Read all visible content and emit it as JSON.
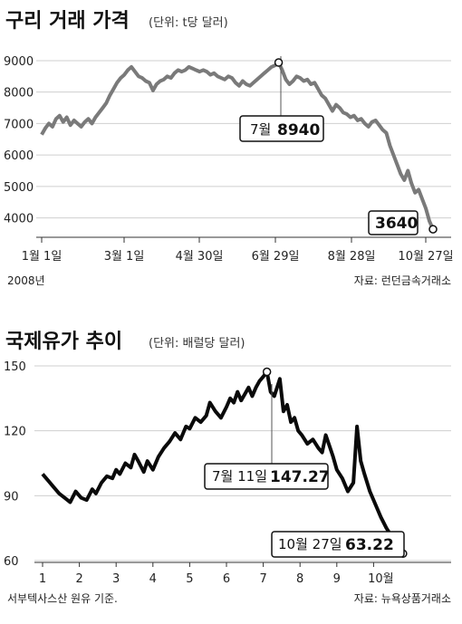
{
  "colors": {
    "line1": "#7a7a7a",
    "line2": "#0a0a0a",
    "grid": "#cfcfcf",
    "axis": "#333333"
  },
  "chart_data": [
    {
      "type": "line",
      "title": "구리 거래 가격",
      "unit": "(단위: t당 달러)",
      "x_tick_labels": [
        "1월 1일",
        "3월 1일",
        "4월 30일",
        "6월 29일",
        "8월 28일",
        "10월 27일"
      ],
      "y_ticks": [
        4000,
        5000,
        6000,
        7000,
        8000,
        9000
      ],
      "ylim": [
        3500,
        9200
      ],
      "grid": true,
      "year_label": "2008년",
      "source": "자료: 런던금속거래소",
      "annotations": [
        {
          "label": "7월",
          "value_text": "8940"
        },
        {
          "label": "",
          "value_text": "3640"
        }
      ],
      "series": [
        {
          "values": [
            6650,
            6850,
            7000,
            6900,
            7150,
            7250,
            7050,
            7200,
            6950,
            7100,
            7000,
            6900,
            7050,
            7150,
            7000,
            7200,
            7350,
            7500,
            7650,
            7900,
            8100,
            8300,
            8450,
            8550,
            8700,
            8800,
            8650,
            8500,
            8450,
            8350,
            8300,
            8050,
            8250,
            8350,
            8400,
            8500,
            8450,
            8600,
            8700,
            8650,
            8700,
            8800,
            8750,
            8700,
            8650,
            8700,
            8650,
            8550,
            8600,
            8500,
            8450,
            8400,
            8500,
            8450,
            8300,
            8200,
            8350,
            8250,
            8200,
            8300,
            8400,
            8500,
            8600,
            8700,
            8800,
            8850,
            8940,
            8700,
            8400,
            8250,
            8350,
            8500,
            8450,
            8350,
            8400,
            8250,
            8300,
            8100,
            7900,
            7800,
            7600,
            7400,
            7600,
            7500,
            7350,
            7300,
            7200,
            7250,
            7100,
            7150,
            7000,
            6900,
            7050,
            7100,
            6950,
            6800,
            6700,
            6300,
            6000,
            5700,
            5400,
            5200,
            5500,
            5100,
            4800,
            4900,
            4600,
            4300,
            3900,
            3640
          ]
        }
      ]
    },
    {
      "type": "line",
      "title": "국제유가 추이",
      "unit": "(단위: 배럴당 달러)",
      "x_tick_labels": [
        "1",
        "2",
        "3",
        "4",
        "5",
        "6",
        "7",
        "8",
        "9",
        "10월"
      ],
      "y_ticks": [
        60,
        90,
        120,
        150
      ],
      "ylim": [
        60,
        150
      ],
      "grid": true,
      "footnote": "서부텍사스산 원유 기준.",
      "source": "자료: 뉴욕상품거래소",
      "annotations": [
        {
          "label": "7월 11일",
          "value_text": "147.27"
        },
        {
          "label": "10월 27일",
          "value_text": "63.22"
        }
      ],
      "series": [
        {
          "values": [
            {
              "x": 1.0,
              "y": 100
            },
            {
              "x": 1.15,
              "y": 97
            },
            {
              "x": 1.3,
              "y": 94
            },
            {
              "x": 1.45,
              "y": 91
            },
            {
              "x": 1.6,
              "y": 89
            },
            {
              "x": 1.75,
              "y": 87
            },
            {
              "x": 1.9,
              "y": 92
            },
            {
              "x": 2.05,
              "y": 89
            },
            {
              "x": 2.2,
              "y": 88
            },
            {
              "x": 2.35,
              "y": 93
            },
            {
              "x": 2.45,
              "y": 91
            },
            {
              "x": 2.6,
              "y": 96
            },
            {
              "x": 2.75,
              "y": 99
            },
            {
              "x": 2.9,
              "y": 98
            },
            {
              "x": 3.0,
              "y": 102
            },
            {
              "x": 3.1,
              "y": 100
            },
            {
              "x": 3.25,
              "y": 105
            },
            {
              "x": 3.4,
              "y": 103
            },
            {
              "x": 3.5,
              "y": 109
            },
            {
              "x": 3.6,
              "y": 106
            },
            {
              "x": 3.75,
              "y": 101
            },
            {
              "x": 3.85,
              "y": 106
            },
            {
              "x": 4.0,
              "y": 102
            },
            {
              "x": 4.15,
              "y": 108
            },
            {
              "x": 4.3,
              "y": 112
            },
            {
              "x": 4.45,
              "y": 115
            },
            {
              "x": 4.6,
              "y": 119
            },
            {
              "x": 4.75,
              "y": 116
            },
            {
              "x": 4.9,
              "y": 122
            },
            {
              "x": 5.0,
              "y": 121
            },
            {
              "x": 5.15,
              "y": 126
            },
            {
              "x": 5.3,
              "y": 124
            },
            {
              "x": 5.45,
              "y": 127
            },
            {
              "x": 5.55,
              "y": 133
            },
            {
              "x": 5.7,
              "y": 129
            },
            {
              "x": 5.85,
              "y": 126
            },
            {
              "x": 6.0,
              "y": 131
            },
            {
              "x": 6.1,
              "y": 135
            },
            {
              "x": 6.2,
              "y": 133
            },
            {
              "x": 6.3,
              "y": 138
            },
            {
              "x": 6.4,
              "y": 134
            },
            {
              "x": 6.5,
              "y": 137
            },
            {
              "x": 6.6,
              "y": 140
            },
            {
              "x": 6.7,
              "y": 136
            },
            {
              "x": 6.8,
              "y": 140
            },
            {
              "x": 6.9,
              "y": 143
            },
            {
              "x": 7.0,
              "y": 145
            },
            {
              "x": 7.1,
              "y": 147.27
            },
            {
              "x": 7.2,
              "y": 138
            },
            {
              "x": 7.3,
              "y": 136
            },
            {
              "x": 7.45,
              "y": 144
            },
            {
              "x": 7.55,
              "y": 129
            },
            {
              "x": 7.65,
              "y": 132
            },
            {
              "x": 7.75,
              "y": 124
            },
            {
              "x": 7.85,
              "y": 126
            },
            {
              "x": 7.95,
              "y": 120
            },
            {
              "x": 8.05,
              "y": 118
            },
            {
              "x": 8.2,
              "y": 114
            },
            {
              "x": 8.35,
              "y": 116
            },
            {
              "x": 8.5,
              "y": 112
            },
            {
              "x": 8.6,
              "y": 110
            },
            {
              "x": 8.7,
              "y": 118
            },
            {
              "x": 8.8,
              "y": 113
            },
            {
              "x": 8.9,
              "y": 108
            },
            {
              "x": 9.0,
              "y": 102
            },
            {
              "x": 9.15,
              "y": 98
            },
            {
              "x": 9.3,
              "y": 92
            },
            {
              "x": 9.45,
              "y": 96
            },
            {
              "x": 9.55,
              "y": 122
            },
            {
              "x": 9.65,
              "y": 106
            },
            {
              "x": 9.75,
              "y": 100
            },
            {
              "x": 9.9,
              "y": 92
            },
            {
              "x": 10.05,
              "y": 86
            },
            {
              "x": 10.2,
              "y": 80
            },
            {
              "x": 10.35,
              "y": 75
            },
            {
              "x": 10.5,
              "y": 71
            },
            {
              "x": 10.65,
              "y": 67
            },
            {
              "x": 10.8,
              "y": 63.22
            }
          ]
        }
      ]
    }
  ]
}
